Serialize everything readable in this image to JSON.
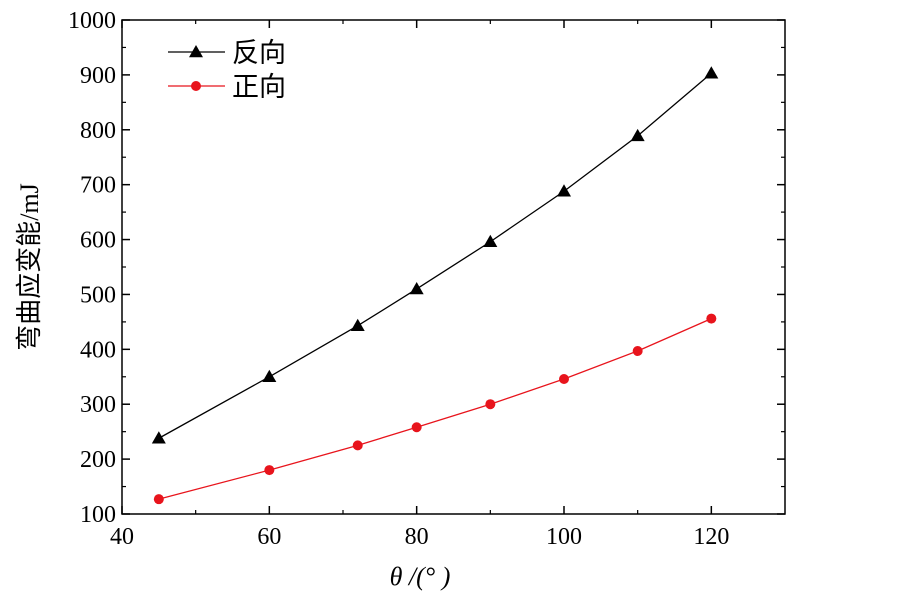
{
  "chart_data": {
    "type": "line",
    "xlabel": "θ /(°  )",
    "ylabel": "弯曲应变能/mJ",
    "xlim": [
      40,
      130
    ],
    "ylim": [
      100,
      1000
    ],
    "xticks": [
      40,
      60,
      80,
      100,
      120
    ],
    "yticks": [
      100,
      200,
      300,
      400,
      500,
      600,
      700,
      800,
      900,
      1000
    ],
    "legend_position": "top-left",
    "grid": false,
    "series": [
      {
        "name": "反向",
        "marker": "triangle",
        "color": "#000000",
        "x": [
          45,
          60,
          72,
          80,
          90,
          100,
          110,
          120
        ],
        "y": [
          238,
          350,
          443,
          510,
          596,
          688,
          789,
          903
        ]
      },
      {
        "name": "正向",
        "marker": "circle",
        "color": "#e8141c",
        "x": [
          45,
          60,
          72,
          80,
          90,
          100,
          110,
          120
        ],
        "y": [
          127,
          180,
          225,
          258,
          300,
          346,
          397,
          456
        ]
      }
    ]
  }
}
